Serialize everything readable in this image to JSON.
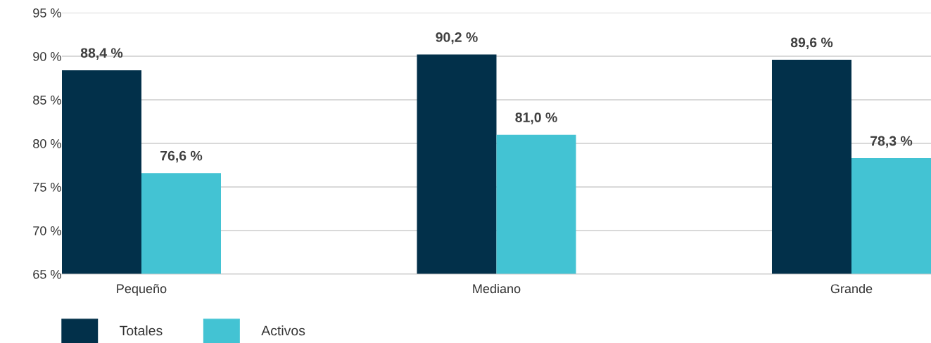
{
  "chart_data": {
    "type": "bar",
    "categories": [
      "Pequeño",
      "Mediano",
      "Grande"
    ],
    "series": [
      {
        "name": "Totales",
        "color": "#02304a",
        "values": [
          88.4,
          90.2,
          89.6
        ],
        "value_labels": [
          "88,4 %",
          "90,2 %",
          "89,6 %"
        ]
      },
      {
        "name": "Activos",
        "color": "#43c3d3",
        "values": [
          76.6,
          81.0,
          78.3
        ],
        "value_labels": [
          "76,6 %",
          "81,0 %",
          "78,3 %"
        ]
      }
    ],
    "ylim": [
      65,
      95
    ],
    "yticks": [
      {
        "value": 65,
        "label": "65 %"
      },
      {
        "value": 70,
        "label": "70 %"
      },
      {
        "value": 75,
        "label": "75 %"
      },
      {
        "value": 80,
        "label": "80 %"
      },
      {
        "value": 85,
        "label": "85 %"
      },
      {
        "value": 90,
        "label": "90 %"
      },
      {
        "value": 95,
        "label": "95 %"
      }
    ],
    "grid": "y",
    "legend": "bottom left"
  }
}
